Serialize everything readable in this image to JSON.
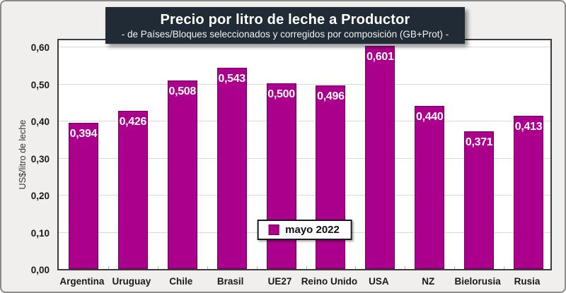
{
  "header": {
    "title": "Precio por litro de leche a Productor",
    "subtitle": "- de Países/Bloques seleccionados y corregidos por composición (GB+Prot) -"
  },
  "colors": {
    "bar_fill": "#AA008C",
    "bar_border": "#70005D",
    "title_bg": "#212B36",
    "frame_bg": "#F0EFED",
    "grid": "#D9D9D9",
    "value_label_text": "#FFFFFF"
  },
  "chart_data": {
    "type": "bar",
    "title": "Precio por litro de leche a Productor",
    "subtitle": "- de Países/Bloques seleccionados y corregidos por composición (GB+Prot) -",
    "categories": [
      "Argentina",
      "Uruguay",
      "Chile",
      "Brasil",
      "UE27",
      "Reino Unido",
      "USA",
      "NZ",
      "Bielorusia",
      "Rusia"
    ],
    "values": [
      0.394,
      0.426,
      0.508,
      0.543,
      0.5,
      0.496,
      0.601,
      0.44,
      0.371,
      0.413
    ],
    "value_labels": [
      "0,394",
      "0,426",
      "0,508",
      "0,543",
      "0,500",
      "0,496",
      "0,601",
      "0,440",
      "0,371",
      "0,413"
    ],
    "xlabel": "",
    "ylabel": "US$/litro de leche",
    "ylim": [
      0,
      0.62
    ],
    "ytick_step": 0.1,
    "ytick_labels": [
      "0,00",
      "0,10",
      "0,20",
      "0,30",
      "0,40",
      "0,50",
      "0,60"
    ],
    "grid": "horizontal",
    "legend": {
      "label": "mayo 2022",
      "position": "bottom-center-inside"
    }
  }
}
